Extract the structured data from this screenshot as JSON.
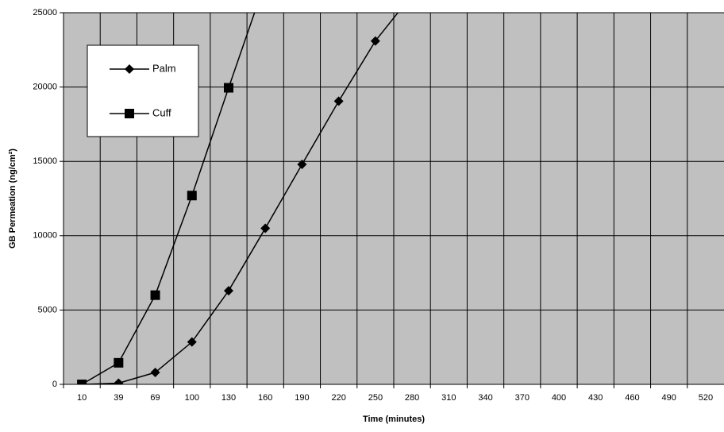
{
  "chart_data": {
    "type": "line",
    "xlabel": "Time (minutes)",
    "ylabel": "GB Permeation (ng/cm²)",
    "categories": [
      10,
      39,
      69,
      100,
      130,
      160,
      190,
      220,
      250,
      280,
      310,
      340,
      370,
      400,
      430,
      460,
      490,
      520
    ],
    "series": [
      {
        "name": "Palm",
        "color": "#000000",
        "marker": "diamond",
        "values": [
          0,
          80,
          800,
          2850,
          6300,
          10500,
          14800,
          19050,
          23100,
          26200,
          null,
          null,
          null,
          null,
          null,
          null,
          null,
          null
        ]
      },
      {
        "name": "Cuff",
        "color": "#000000",
        "marker": "square",
        "values": [
          0,
          1450,
          6000,
          12700,
          19950,
          27100,
          null,
          null,
          null,
          null,
          null,
          null,
          null,
          null,
          null,
          null,
          null,
          null
        ]
      }
    ],
    "ylim": [
      0,
      25000
    ],
    "yticks": [
      0,
      5000,
      10000,
      15000,
      20000,
      25000
    ],
    "grid": true,
    "background": "#c0c0c0",
    "legend": "upper left"
  }
}
